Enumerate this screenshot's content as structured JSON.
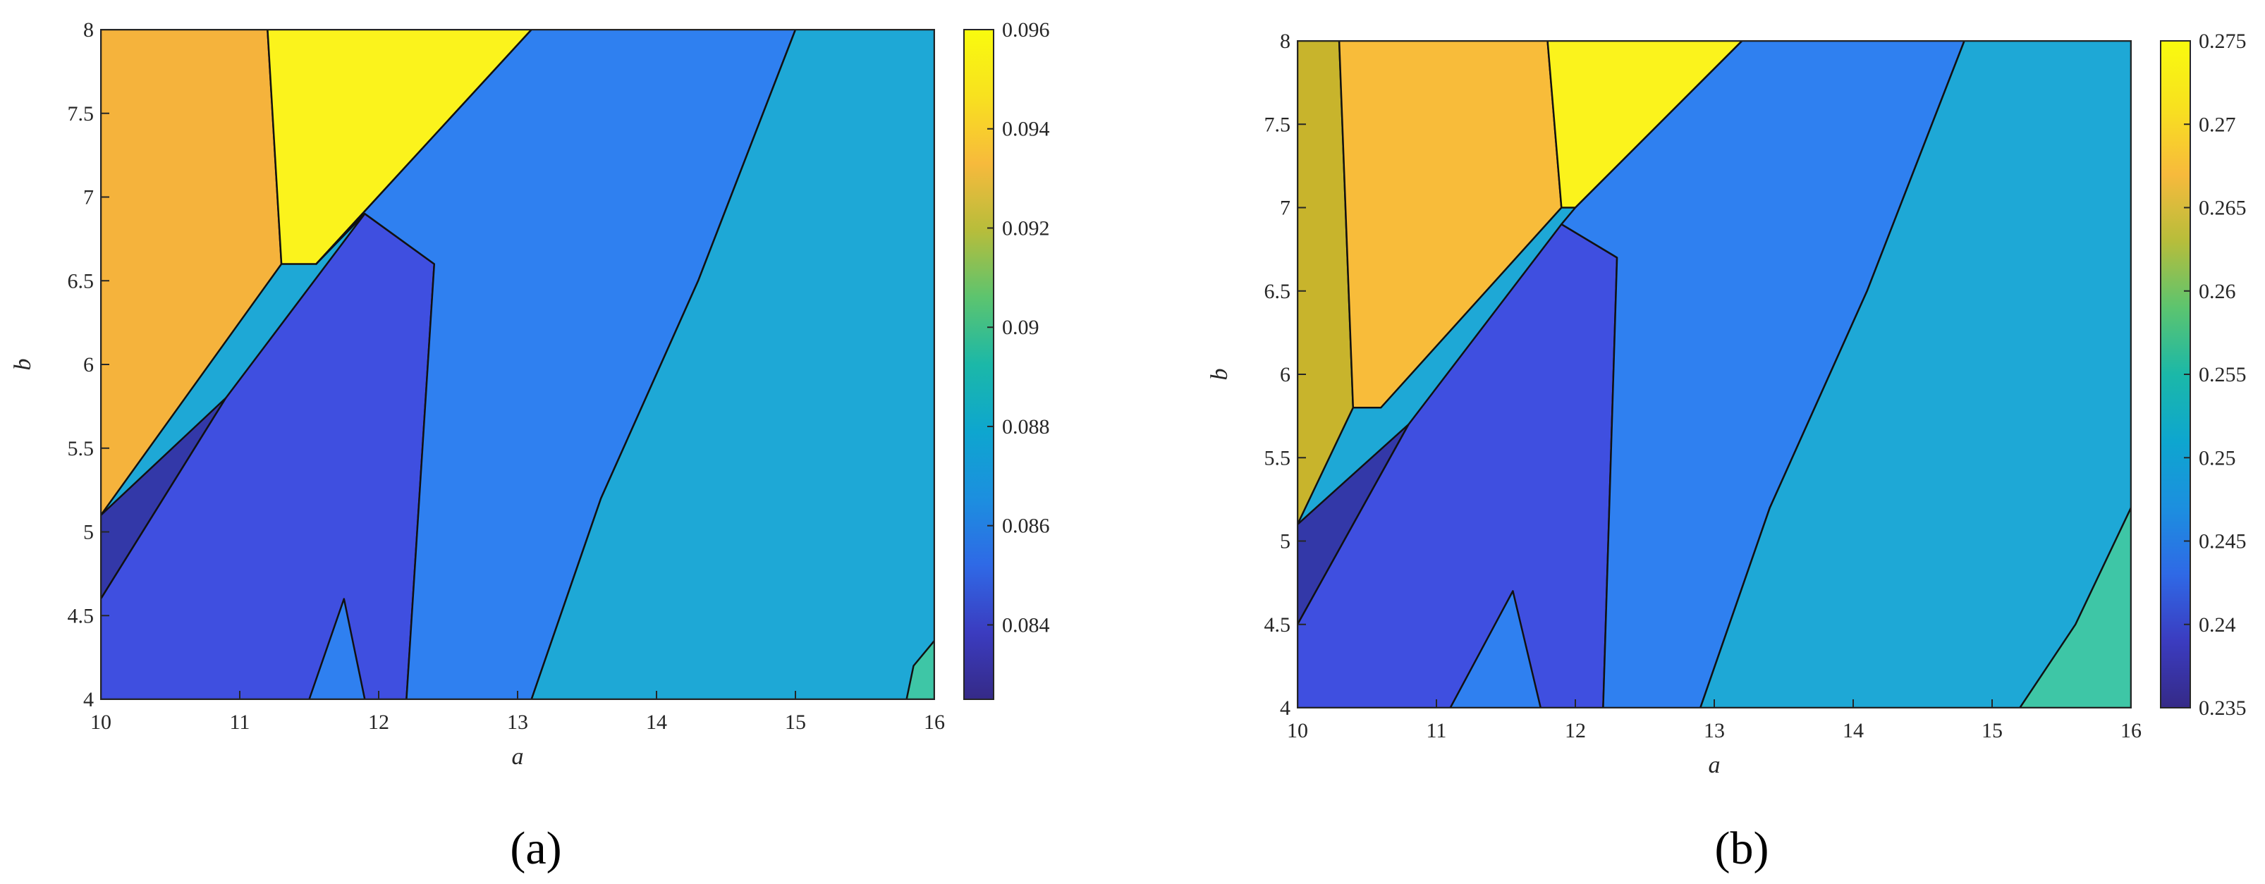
{
  "chart_data": [
    {
      "type": "heatmap",
      "panel_label": "(a)",
      "xlabel": "a",
      "ylabel": "b",
      "xlim": [
        10,
        16
      ],
      "ylim": [
        4,
        8
      ],
      "x_ticks": [
        10,
        11,
        12,
        13,
        14,
        15,
        16
      ],
      "y_ticks": [
        4,
        4.5,
        5,
        5.5,
        6,
        6.5,
        7,
        7.5,
        8
      ],
      "x_tick_labels": [
        "10",
        "11",
        "12",
        "13",
        "14",
        "15",
        "16"
      ],
      "y_tick_labels": [
        "4",
        "4.5",
        "5",
        "5.5",
        "6",
        "6.5",
        "7",
        "7.5",
        "8"
      ],
      "colorbar": {
        "colormap": "parula",
        "range": [
          0.0825,
          0.096
        ],
        "ticks": [
          0.084,
          0.086,
          0.088,
          0.09,
          0.092,
          0.094,
          0.096
        ],
        "tick_labels": [
          "0.084",
          "0.086",
          "0.088",
          "0.09",
          "0.092",
          "0.094",
          "0.096"
        ]
      },
      "contour_lines": true,
      "regions": [
        {
          "name": "upper-left",
          "color": "#f5b33c",
          "value": 0.0935,
          "polygon": [
            [
              10,
              8
            ],
            [
              11.2,
              8
            ],
            [
              11.3,
              6.6
            ],
            [
              10,
              5.1
            ]
          ]
        },
        {
          "name": "top-wedge",
          "color": "#fbf31c",
          "value": 0.096,
          "polygon": [
            [
              11.2,
              8
            ],
            [
              13.1,
              8
            ],
            [
              11.55,
              6.6
            ],
            [
              11.3,
              6.6
            ]
          ]
        },
        {
          "name": "left-strip",
          "color": "#3338a8",
          "value": 0.0825,
          "polygon": [
            [
              10,
              5.1
            ],
            [
              10.9,
              5.8
            ],
            [
              10,
              4.6
            ]
          ]
        },
        {
          "name": "middle-band",
          "color": "#3f4fe0",
          "value": 0.084,
          "polygon": [
            [
              10,
              4.6
            ],
            [
              10.9,
              5.8
            ],
            [
              11.9,
              6.9
            ],
            [
              12.4,
              6.6
            ],
            [
              12.2,
              4
            ],
            [
              10,
              4
            ]
          ]
        },
        {
          "name": "right-band",
          "color": "#2f80f0",
          "value": 0.0865,
          "polygon": [
            [
              13.1,
              8
            ],
            [
              15.0,
              8
            ],
            [
              14.3,
              6.5
            ],
            [
              13.6,
              5.2
            ],
            [
              13.1,
              4
            ],
            [
              12.2,
              4
            ],
            [
              12.4,
              6.6
            ],
            [
              11.9,
              6.9
            ],
            [
              11.55,
              6.6
            ]
          ]
        },
        {
          "name": "far-right",
          "color": "#1ea8d6",
          "value": 0.0885,
          "polygon": [
            [
              15.0,
              8
            ],
            [
              16,
              8
            ],
            [
              16,
              4
            ],
            [
              13.1,
              4
            ],
            [
              13.6,
              5.2
            ],
            [
              14.3,
              6.5
            ]
          ]
        },
        {
          "name": "bottom-patch",
          "color": "#2f80f0",
          "value": 0.0865,
          "polygon": [
            [
              11.5,
              4
            ],
            [
              11.75,
              4.6
            ],
            [
              11.9,
              4
            ]
          ]
        },
        {
          "name": "corner-patch",
          "color": "#3ec6a6",
          "value": 0.0905,
          "polygon": [
            [
              15.8,
              4
            ],
            [
              16,
              4
            ],
            [
              16,
              4.35
            ],
            [
              15.85,
              4.2
            ]
          ]
        }
      ]
    },
    {
      "type": "heatmap",
      "panel_label": "(b)",
      "xlabel": "a",
      "ylabel": "b",
      "xlim": [
        10,
        16
      ],
      "ylim": [
        4,
        8
      ],
      "x_ticks": [
        10,
        11,
        12,
        13,
        14,
        15,
        16
      ],
      "y_ticks": [
        4,
        4.5,
        5,
        5.5,
        6,
        6.5,
        7,
        7.5,
        8
      ],
      "x_tick_labels": [
        "10",
        "11",
        "12",
        "13",
        "14",
        "15",
        "16"
      ],
      "y_tick_labels": [
        "4",
        "4.5",
        "5",
        "5.5",
        "6",
        "6.5",
        "7",
        "7.5",
        "8"
      ],
      "colorbar": {
        "colormap": "parula",
        "range": [
          0.235,
          0.275
        ],
        "ticks": [
          0.235,
          0.24,
          0.245,
          0.25,
          0.255,
          0.26,
          0.265,
          0.27,
          0.275
        ],
        "tick_labels": [
          "0.235",
          "0.24",
          "0.245",
          "0.25",
          "0.255",
          "0.26",
          "0.265",
          "0.27",
          "0.275"
        ]
      },
      "contour_lines": true,
      "regions": [
        {
          "name": "left-column",
          "color": "#c8b42c",
          "value": 0.266,
          "polygon": [
            [
              10,
              8
            ],
            [
              10.3,
              8
            ],
            [
              10.4,
              5.8
            ],
            [
              10,
              5.1
            ]
          ]
        },
        {
          "name": "upper-left",
          "color": "#f8bc3a",
          "value": 0.271,
          "polygon": [
            [
              10.3,
              8
            ],
            [
              11.8,
              8
            ],
            [
              11.9,
              7.0
            ],
            [
              10.6,
              5.8
            ],
            [
              10.4,
              5.8
            ]
          ]
        },
        {
          "name": "top-wedge",
          "color": "#fbf31c",
          "value": 0.275,
          "polygon": [
            [
              11.8,
              8
            ],
            [
              13.2,
              8
            ],
            [
              12.0,
              7.0
            ],
            [
              11.9,
              7.0
            ]
          ]
        },
        {
          "name": "left-strip",
          "color": "#3338a8",
          "value": 0.236,
          "polygon": [
            [
              10,
              5.1
            ],
            [
              10.8,
              5.7
            ],
            [
              10,
              4.5
            ]
          ]
        },
        {
          "name": "middle-band",
          "color": "#3f4fe0",
          "value": 0.239,
          "polygon": [
            [
              10,
              4.5
            ],
            [
              10.8,
              5.7
            ],
            [
              11.9,
              6.9
            ],
            [
              12.3,
              6.7
            ],
            [
              12.2,
              4
            ],
            [
              10,
              4
            ]
          ]
        },
        {
          "name": "right-band",
          "color": "#2f80f0",
          "value": 0.245,
          "polygon": [
            [
              13.2,
              8
            ],
            [
              14.8,
              8
            ],
            [
              14.1,
              6.5
            ],
            [
              13.4,
              5.2
            ],
            [
              12.9,
              4
            ],
            [
              12.2,
              4
            ],
            [
              12.3,
              6.7
            ],
            [
              11.9,
              6.9
            ],
            [
              12.0,
              7.0
            ]
          ]
        },
        {
          "name": "far-right",
          "color": "#1ea8d6",
          "value": 0.25,
          "polygon": [
            [
              14.8,
              8
            ],
            [
              16,
              8
            ],
            [
              16,
              4
            ],
            [
              12.9,
              4
            ],
            [
              13.4,
              5.2
            ],
            [
              14.1,
              6.5
            ]
          ]
        },
        {
          "name": "bottom-patch",
          "color": "#2f80f0",
          "value": 0.245,
          "polygon": [
            [
              11.1,
              4
            ],
            [
              11.55,
              4.7
            ],
            [
              11.75,
              4
            ]
          ]
        },
        {
          "name": "corner-patch",
          "color": "#3ec6a6",
          "value": 0.256,
          "polygon": [
            [
              15.2,
              4
            ],
            [
              16,
              4
            ],
            [
              16,
              5.2
            ],
            [
              15.6,
              4.5
            ]
          ]
        }
      ]
    }
  ]
}
